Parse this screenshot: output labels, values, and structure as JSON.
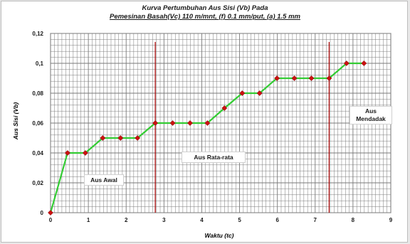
{
  "chart_data": {
    "type": "line",
    "title": "Kurva Pertumbuhan Aus Sisi (Vb) Pada",
    "subtitle": "Pemesinan Basah(Vc) 110 m/mnt, (f) 0.1 mm/put, (a) 1.5 mm",
    "xlabel": "Waktu (tc)",
    "ylabel": "Aus Sisi (Vb)",
    "xlim": [
      0,
      9
    ],
    "ylim": [
      0,
      0.12
    ],
    "xticks": [
      "0",
      "1",
      "2",
      "3",
      "4",
      "5",
      "6",
      "7",
      "8",
      "9"
    ],
    "yticks": [
      "0",
      "0,02",
      "0,04",
      "0,06",
      "0,08",
      "0,1",
      "0,12"
    ],
    "grid": true,
    "legend": "none",
    "series": [
      {
        "x": [
          0,
          0.45,
          0.92,
          1.38,
          1.85,
          2.3,
          2.77,
          3.23,
          3.69,
          4.15,
          4.6,
          5.07,
          5.53,
          5.99,
          6.45,
          6.9,
          7.37,
          7.83,
          8.29
        ],
        "values": [
          0,
          0.04,
          0.04,
          0.05,
          0.05,
          0.05,
          0.06,
          0.06,
          0.06,
          0.06,
          0.07,
          0.08,
          0.08,
          0.09,
          0.09,
          0.09,
          0.09,
          0.1,
          0.1
        ]
      }
    ],
    "vlines": [
      2.77,
      7.37
    ],
    "annotations": {
      "awal": "Aus Awal",
      "rata": "Aus Rata-rata",
      "mendadak_line1": "Aus",
      "mendadak_line2": "Mendadak"
    },
    "colors": {
      "line": "#33cc33",
      "marker": "#cc1111",
      "vline": "#aa0000",
      "grid": "#7a7a7a"
    }
  }
}
